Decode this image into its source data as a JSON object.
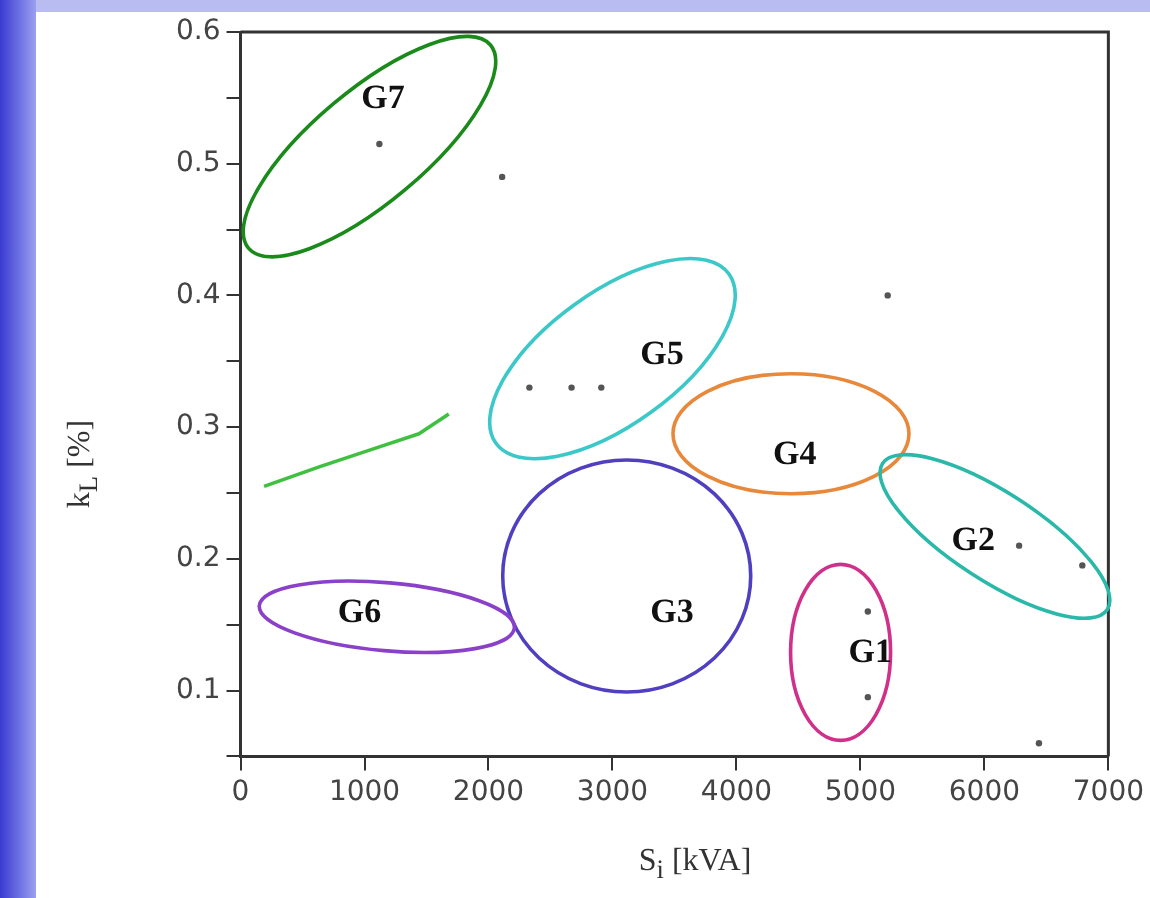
{
  "chart_data": {
    "type": "scatter",
    "xlabel": "S$_{i}$ [kVA]",
    "ylabel": "k$_{L}$ [%]",
    "xlim": [
      0,
      7000
    ],
    "ylim": [
      0.05,
      0.6
    ],
    "xticks": [
      0,
      1000,
      2000,
      3000,
      4000,
      5000,
      6000,
      7000
    ],
    "yticks": [
      {
        "value": 0.05,
        "label": null
      },
      0.1,
      {
        "value": 0.15,
        "label": null
      },
      0.2,
      {
        "value": 0.25,
        "label": null
      },
      0.3,
      {
        "value": 0.35,
        "label": null
      },
      0.4,
      {
        "value": 0.45,
        "label": null
      },
      0.5,
      {
        "value": 0.55,
        "label": null
      },
      0.6
    ],
    "grid": false,
    "legend": false,
    "series": [
      {
        "color": "#555555",
        "x": [
          1120,
          2110,
          6440,
          2330,
          2670,
          2910,
          5060,
          5060,
          6280,
          6790,
          5220
        ],
        "values": [
          0.515,
          0.49,
          0.06,
          0.33,
          0.33,
          0.33,
          0.095,
          0.16,
          0.21,
          0.195,
          0.4
        ]
      },
      {
        "type": "line",
        "color": "#40c040",
        "x": [
          190,
          640,
          1120,
          1440,
          1680
        ],
        "values": [
          0.255,
          0.27,
          0.285,
          0.295,
          0.31
        ]
      }
    ],
    "annotations": [
      "G7",
      "G5",
      "G4",
      "G2",
      "G3",
      "G6",
      "G1"
    ]
  }
}
